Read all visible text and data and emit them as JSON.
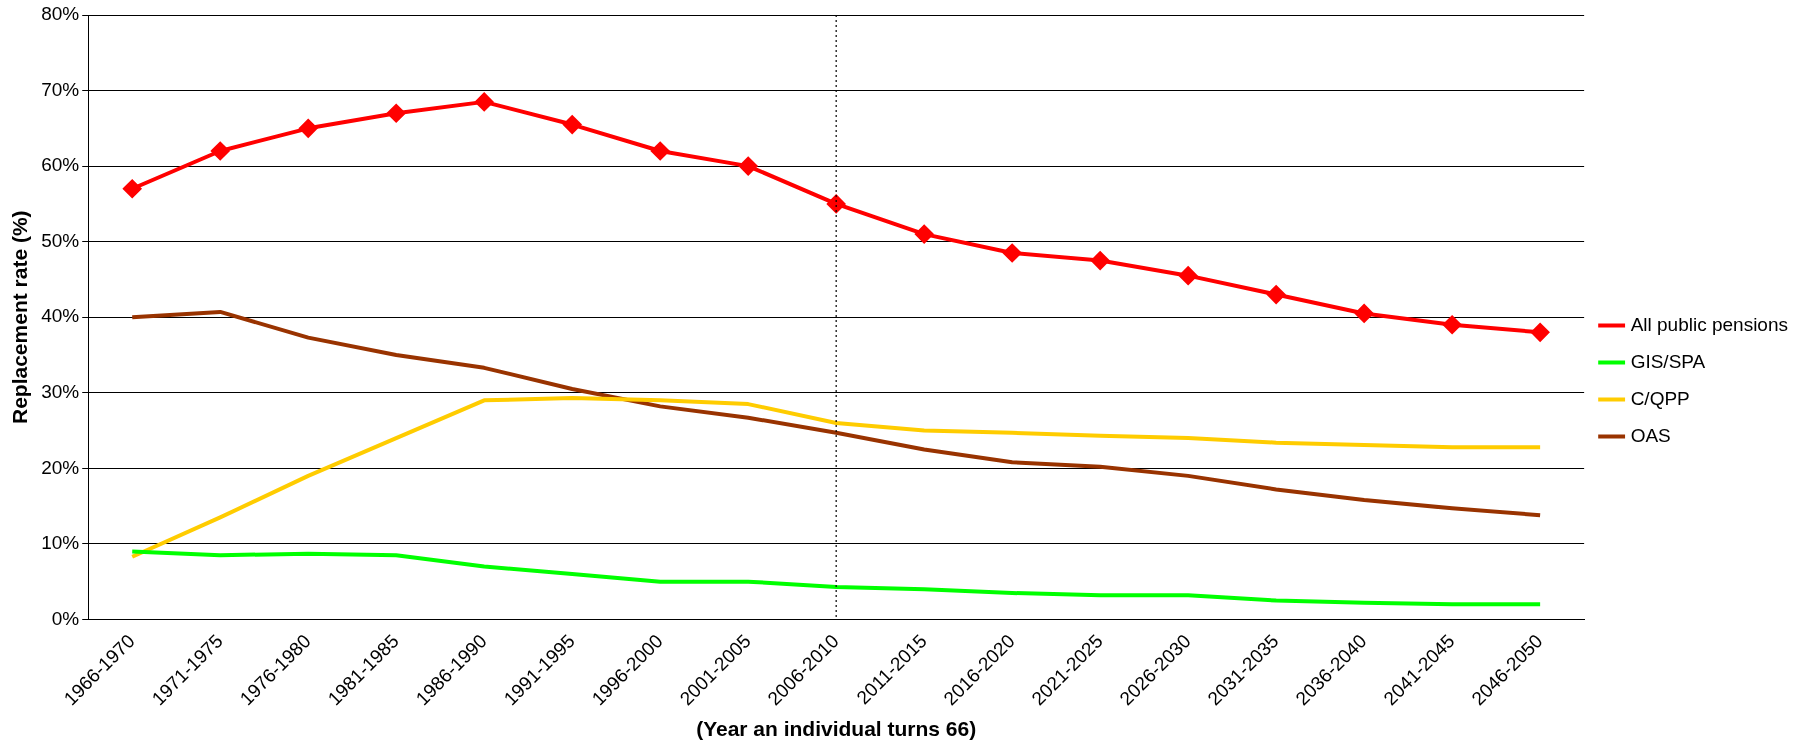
{
  "chart_data": {
    "type": "line",
    "xlabel": "(Year an individual turns 66)",
    "ylabel": "Replacement rate (%)",
    "categories": [
      "1966-1970",
      "1971-1975",
      "1976-1980",
      "1981-1985",
      "1986-1990",
      "1991-1995",
      "1996-2000",
      "2001-2005",
      "2006-2010",
      "2011-2015",
      "2016-2020",
      "2021-2025",
      "2026-2030",
      "2031-2035",
      "2036-2040",
      "2041-2045",
      "2046-2050"
    ],
    "series": [
      {
        "name": "All public pensions",
        "color": "#ff0000",
        "marker": "diamond",
        "values": [
          57,
          62,
          65,
          67,
          68.5,
          65.5,
          62,
          60,
          55,
          51,
          48.5,
          47.5,
          45.5,
          43,
          40.5,
          39,
          38
        ]
      },
      {
        "name": "GIS/SPA",
        "color": "#00ff00",
        "marker": "none",
        "values": [
          9,
          8.5,
          8.7,
          8.5,
          7,
          6,
          5,
          5,
          4.3,
          4,
          3.5,
          3.2,
          3.2,
          2.5,
          2.2,
          2,
          2
        ]
      },
      {
        "name": "C/QPP",
        "color": "#ffcc00",
        "marker": "none",
        "values": [
          8.3,
          13.5,
          19,
          24,
          29,
          29.3,
          29,
          28.5,
          26,
          25,
          24.7,
          24.3,
          24,
          23.4,
          23.1,
          22.8,
          22.8
        ]
      },
      {
        "name": "OAS",
        "color": "#993300",
        "marker": "none",
        "values": [
          40,
          40.7,
          37.3,
          35,
          33.3,
          30.5,
          28.2,
          26.7,
          24.7,
          22.5,
          20.8,
          20.2,
          19,
          17.2,
          15.8,
          14.7,
          13.8
        ]
      }
    ],
    "ylim": [
      0,
      80
    ],
    "yticks": [
      {
        "value": 0,
        "label": "0%"
      },
      {
        "value": 10,
        "label": "10%"
      },
      {
        "value": 20,
        "label": "20%"
      },
      {
        "value": 30,
        "label": "30%"
      },
      {
        "value": 40,
        "label": "40%"
      },
      {
        "value": 50,
        "label": "50%"
      },
      {
        "value": 60,
        "label": "60%"
      },
      {
        "value": 70,
        "label": "70%"
      },
      {
        "value": 80,
        "label": "80%"
      }
    ],
    "grid": "y",
    "legend": "right",
    "line_style": "solid",
    "ref_lines": [
      {
        "axis": "x",
        "value": "2006-2010",
        "color": "#000000",
        "line_style": "dotted"
      }
    ]
  }
}
